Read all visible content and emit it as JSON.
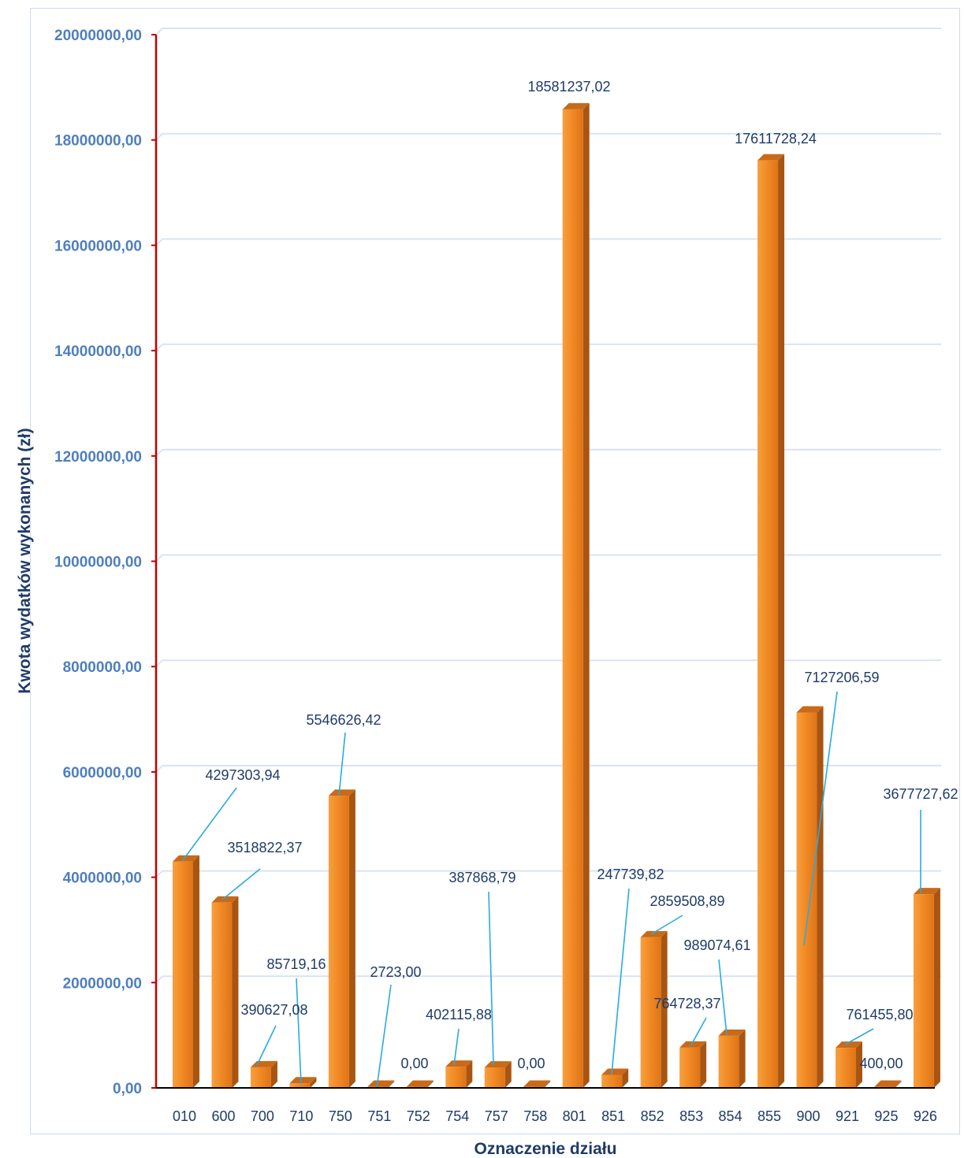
{
  "chart_data": {
    "type": "bar",
    "title": "",
    "xlabel": "Oznaczenie działu",
    "ylabel": "Kwota wydatków wykonanych  (zł)",
    "ylim": [
      0,
      20000000
    ],
    "grid": true,
    "yticks": [
      "0,00",
      "2000000,00",
      "4000000,00",
      "6000000,00",
      "8000000,00",
      "10000000,00",
      "12000000,00",
      "14000000,00",
      "16000000,00",
      "18000000,00",
      "20000000,00"
    ],
    "categories": [
      "010",
      "600",
      "700",
      "710",
      "750",
      "751",
      "752",
      "754",
      "757",
      "758",
      "801",
      "851",
      "852",
      "853",
      "854",
      "855",
      "900",
      "921",
      "925",
      "926"
    ],
    "values": [
      4297303.94,
      3518822.37,
      390627.08,
      85719.16,
      5546626.42,
      2723.0,
      0.0,
      402115.88,
      387868.79,
      0.0,
      18581237.02,
      247739.82,
      2859508.89,
      764728.37,
      989074.61,
      17611728.24,
      7127206.59,
      761455.8,
      400.0,
      3677727.62
    ],
    "data_labels": [
      "4297303,94",
      "3518822,37",
      "390627,08",
      "85719,16",
      "5546626,42",
      "2723,00",
      "0,00",
      "402115,88",
      "387868,79",
      "0,00",
      "18581237,02",
      "247739,82",
      "2859508,89",
      "764728,37",
      "989074,61",
      "17611728,24",
      "7127206,59",
      "761455,80",
      "400,00",
      "3677727,62"
    ],
    "colors": {
      "bar_front": "#f18a24",
      "bar_side": "#a95512",
      "bar_top": "#c86a18",
      "grid": "#d9e3f1",
      "leader": "#29abe2",
      "y_axis_line": "#c00000",
      "x_axis_line": "#000000"
    }
  }
}
